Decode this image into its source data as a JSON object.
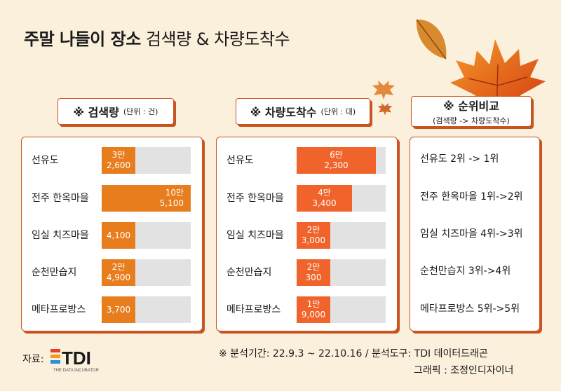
{
  "title": {
    "bold": "주말 나들이 장소",
    "rest": " 검색량 & 차량도착수"
  },
  "chart_data": [
    {
      "type": "bar",
      "title": "※ 검색량",
      "unit": "(단위 : 건)",
      "categories": [
        "선유도",
        "전주 한옥마을",
        "임실 치즈마을",
        "순천만습지",
        "메타프로방스"
      ],
      "values": [
        32600,
        105100,
        4100,
        24900,
        3700
      ],
      "value_labels": [
        [
          "3만",
          "2,600"
        ],
        [
          "10만",
          "5,100"
        ],
        [
          "4,100"
        ],
        [
          "2만",
          "4,900"
        ],
        [
          "3,700"
        ]
      ],
      "color": "#e87d1e"
    },
    {
      "type": "bar",
      "title": "※ 차량도착수",
      "unit": "(단위 : 대)",
      "categories": [
        "선유도",
        "전주 한옥마을",
        "임실 치즈마을",
        "순천만습지",
        "메타프로방스"
      ],
      "values": [
        62300,
        43400,
        23000,
        20300,
        19000
      ],
      "value_labels": [
        [
          "6만",
          "2,300"
        ],
        [
          "4만",
          "3,400"
        ],
        [
          "2만",
          "3,000"
        ],
        [
          "2만",
          "300"
        ],
        [
          "1만",
          "9,000"
        ]
      ],
      "color": "#f0632b"
    }
  ],
  "rank_panel": {
    "title": "※ 순위비교",
    "subtitle": "(검색량 -> 차량도착수)",
    "items": [
      "선유도 2위 -> 1위",
      "전주 한옥마을 1위->2위",
      "임실 치즈마을 4위->3위",
      "순천만습지 3위->4위",
      "메타프로방스 5위->5위"
    ]
  },
  "footer": {
    "period": "※ 분석기간:  22.9.3 ~ 22.10.16  / 분석도구: TDI 데이터드래곤",
    "graphic": "그래픽 : 조정인디자이너"
  },
  "source": {
    "label": "자료:",
    "logo_text": "TDI",
    "logo_sub": "THE DATA INCUBATOR"
  },
  "colors": {
    "background": "#fbf0dc",
    "border": "#c9541f",
    "track": "#e2e2e2"
  }
}
